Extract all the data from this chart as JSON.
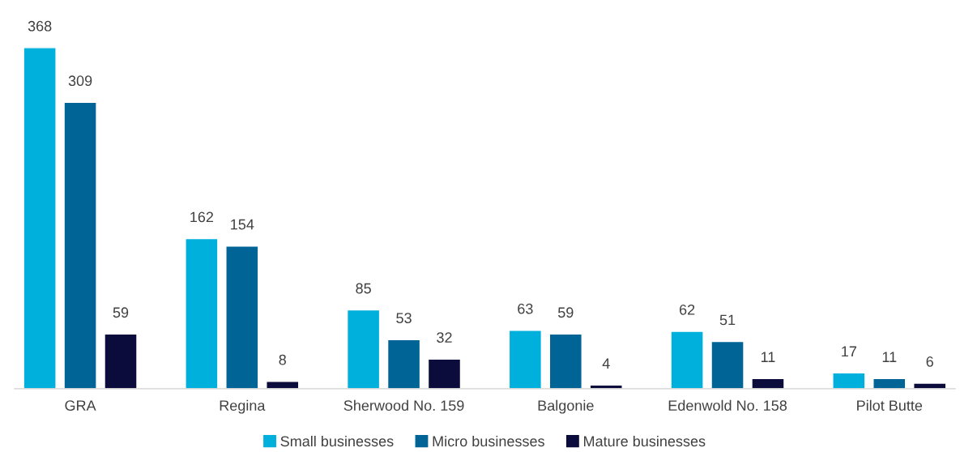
{
  "chart_data": {
    "type": "bar",
    "categories": [
      "GRA",
      "Regina",
      "Sherwood No. 159",
      "Balgonie",
      "Edenwold No. 158",
      "Pilot Butte"
    ],
    "series": [
      {
        "name": "Small businesses",
        "color": "#00b0dc",
        "values": [
          368,
          162,
          85,
          63,
          62,
          17
        ]
      },
      {
        "name": "Micro businesses",
        "color": "#006496",
        "values": [
          309,
          154,
          53,
          59,
          51,
          11
        ]
      },
      {
        "name": "Mature businesses",
        "color": "#0c0c3c",
        "values": [
          59,
          8,
          32,
          4,
          11,
          6
        ]
      }
    ],
    "data_labels": true,
    "legend": "bottom",
    "grid": false
  }
}
